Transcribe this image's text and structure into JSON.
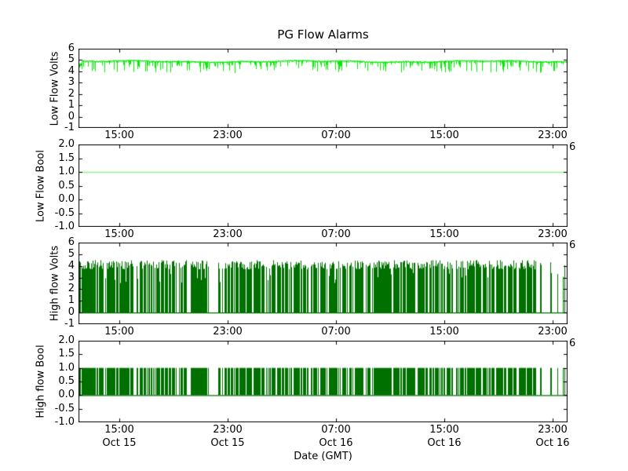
{
  "title": "PG Flow Alarms",
  "colors": {
    "background": "#ffffff",
    "axes": "#000000",
    "text": "#000000",
    "low_flow_volts_line": "#00EE00",
    "low_flow_bool_line": "#90EE90",
    "high_flow_line": "#007000"
  },
  "x_axis": {
    "xlabel": "Date (GMT)",
    "start": "Oct 15 12:00",
    "end": "Oct 17 00:06",
    "total_hours": 36.1,
    "tick_hours_from_start": [
      3,
      11,
      19,
      27,
      35
    ],
    "tick_time_labels": [
      "15:00",
      "23:00",
      "07:00",
      "15:00",
      "23:00"
    ],
    "tick_date_labels": [
      "Oct 15",
      "Oct 15",
      "Oct 16",
      "Oct 16",
      "Oct 16"
    ],
    "time_labels_under_every_subplot": true,
    "date_labels_under_bottom_subplot_only": true
  },
  "chart_data": [
    {
      "type": "line",
      "ylabel": "Low Flow Volts",
      "ylim": [
        -1,
        6
      ],
      "ytick_values": [
        6,
        5,
        4,
        3,
        2,
        1,
        0,
        -1
      ],
      "ytick_labels": [
        "6",
        "5",
        "4",
        "3",
        "2",
        "1",
        "0",
        "-1"
      ],
      "line_color": "#00EE00",
      "corner_label": "",
      "series": {
        "kind": "noisy_top",
        "baseline_volts": 4.85,
        "typical_band": [
          4.72,
          4.98
        ],
        "dip_floor_volts": 3.9,
        "behavior": "continuous noisy voltage holding near 4.8-5.0 V for the whole span with frequent brief downward spikes to about 4.0 V"
      }
    },
    {
      "type": "line",
      "ylabel": "Low Flow Bool",
      "ylim": [
        -1,
        2
      ],
      "ytick_values": [
        2,
        1.5,
        1,
        0.5,
        0,
        -0.5,
        -1
      ],
      "ytick_labels": [
        "2.0",
        "1.5",
        "1.0",
        "0.5",
        "0.0",
        "-0.5",
        "-1.0"
      ],
      "line_color": "#90EE90",
      "corner_label": "6",
      "series": {
        "kind": "constant",
        "value": 1.0,
        "behavior": "flat line at 1.0 across the entire span"
      }
    },
    {
      "type": "line",
      "ylabel": "High flow Volts",
      "ylim": [
        -1,
        6
      ],
      "ytick_values": [
        6,
        5,
        4,
        3,
        2,
        1,
        0,
        -1
      ],
      "ytick_labels": [
        "6",
        "5",
        "4",
        "3",
        "2",
        "1",
        "0",
        "-1"
      ],
      "line_color": "#007000",
      "corner_label": "6",
      "series": {
        "kind": "telegraph",
        "low_volts": 0.0,
        "high_volts_range": [
          3.7,
          4.5
        ],
        "occasional_short_peaks_range": [
          2.5,
          3.4
        ],
        "approx_duty_cycle": 0.55,
        "behavior": "rapid random switching between a 0 V baseline and ~4.2 V bursts, in dense clusters separated by short quiet gaps; sparser near the right edge"
      }
    },
    {
      "type": "line",
      "ylabel": "High flow Bool",
      "ylim": [
        -1,
        2
      ],
      "ytick_values": [
        2,
        1.5,
        1,
        0.5,
        0,
        -0.5,
        -1
      ],
      "ytick_labels": [
        "2.0",
        "1.5",
        "1.0",
        "0.5",
        "0.0",
        "-0.5",
        "-1.0"
      ],
      "line_color": "#007000",
      "corner_label": "6",
      "series": {
        "kind": "telegraph_bool",
        "low": 0.0,
        "high": 1.0,
        "behavior": "boolean 0/1 spikes exactly matching the High flow Volts burst pattern"
      }
    }
  ]
}
